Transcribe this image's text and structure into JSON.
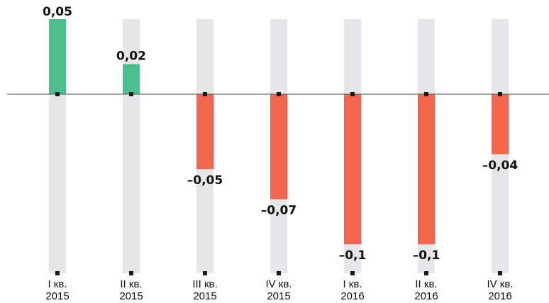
{
  "chart_data": {
    "type": "bar",
    "categories": [
      [
        "I кв.",
        "2015"
      ],
      [
        "II кв.",
        "2015"
      ],
      [
        "III кв.",
        "2015"
      ],
      [
        "IV кв.",
        "2015"
      ],
      [
        "I кв.",
        "2016"
      ],
      [
        "II кв.",
        "2016"
      ],
      [
        "IV кв.",
        "2016"
      ]
    ],
    "values": [
      0.05,
      0.02,
      -0.05,
      -0.07,
      -0.1,
      -0.1,
      -0.04
    ],
    "value_labels": [
      "0,05",
      "0,02",
      "–0,05",
      "–0,07",
      "–0,1",
      "–0,1",
      "–0,04"
    ],
    "ylim": [
      -0.12,
      0.05
    ],
    "grid": false,
    "legend": "none",
    "colors": {
      "positive": "#4dbf8f",
      "negative": "#f2664e",
      "track": "#e6e6e8",
      "zero_line": "#555555",
      "marker": "#1a1a1a"
    }
  }
}
